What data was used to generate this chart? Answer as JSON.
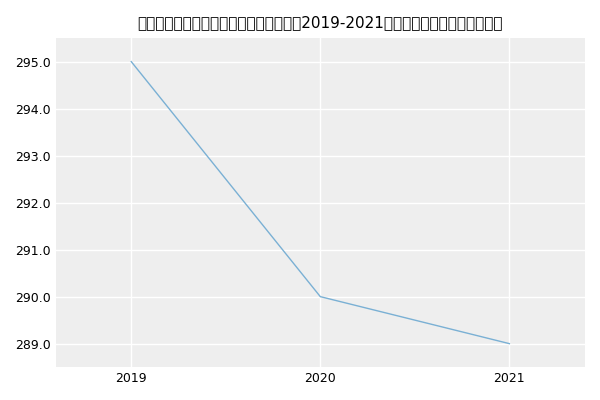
{
  "title": "内蒙古医科大学第一临床医学院肿瘤学（2019-2021历年复试）研究生录取分数线",
  "x": [
    2019,
    2020,
    2021
  ],
  "y": [
    295,
    290,
    289
  ],
  "line_color": "#7ab0d4",
  "background_color": "#ffffff",
  "plot_bg_color": "#eeeeee",
  "ylim": [
    288.5,
    295.5
  ],
  "xlim": [
    2018.6,
    2021.4
  ],
  "yticks": [
    289.0,
    290.0,
    291.0,
    292.0,
    293.0,
    294.0,
    295.0
  ],
  "xticks": [
    2019,
    2020,
    2021
  ],
  "title_fontsize": 11,
  "tick_fontsize": 9,
  "grid_color": "#ffffff",
  "grid_linewidth": 1.0,
  "line_width": 1.0
}
